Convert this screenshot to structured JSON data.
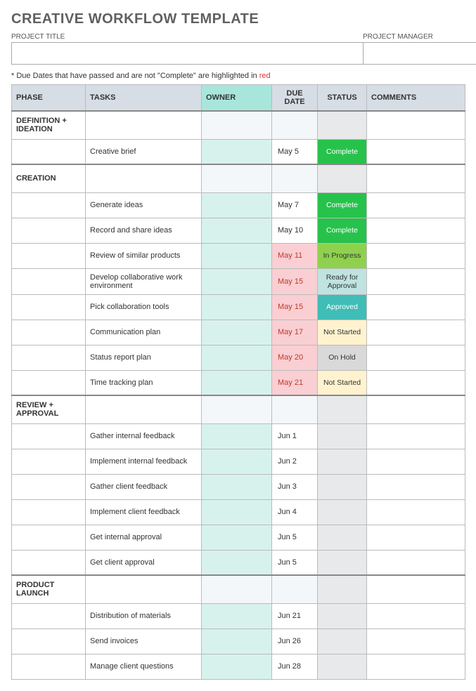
{
  "title": "CREATIVE WORKFLOW TEMPLATE",
  "meta": {
    "project_title_label": "PROJECT TITLE",
    "project_manager_label": "PROJECT MANAGER",
    "project_title_value": "",
    "project_manager_value": ""
  },
  "note": {
    "prefix": "* Due Dates that have passed and are not \"Complete\" are highlighted in ",
    "red_word": "red"
  },
  "columns": {
    "phase": "PHASE",
    "tasks": "TASKS",
    "owner": "OWNER",
    "due": "DUE DATE",
    "status": "STATUS",
    "comments": "COMMENTS"
  },
  "status_styles": {
    "Complete": {
      "bg": "#27c24c",
      "fg": "#ffffff"
    },
    "In Progress": {
      "bg": "#8fd14f",
      "fg": "#333333"
    },
    "Ready for Approval": {
      "bg": "#bfe3e0",
      "fg": "#333333"
    },
    "Approved": {
      "bg": "#3fbdb6",
      "fg": "#ffffff"
    },
    "Not Started": {
      "bg": "#fff3cf",
      "fg": "#333333"
    },
    "On Hold": {
      "bg": "#d9d9d9",
      "fg": "#333333"
    },
    "": {
      "bg": "#e7e9eb",
      "fg": "#333333"
    }
  },
  "overdue_style": {
    "bg": "#f9cfd3",
    "fg": "#c0392b"
  },
  "sections": [
    {
      "phase": "DEFINITION + IDEATION",
      "tasks": [
        {
          "task": "Creative brief",
          "owner": "",
          "due": "May 5",
          "overdue": false,
          "status": "Complete",
          "comments": ""
        }
      ]
    },
    {
      "phase": "CREATION",
      "tasks": [
        {
          "task": "Generate ideas",
          "owner": "",
          "due": "May 7",
          "overdue": false,
          "status": "Complete",
          "comments": ""
        },
        {
          "task": "Record and share ideas",
          "owner": "",
          "due": "May 10",
          "overdue": false,
          "status": "Complete",
          "comments": ""
        },
        {
          "task": "Review of similar products",
          "owner": "",
          "due": "May 11",
          "overdue": true,
          "status": "In Progress",
          "comments": ""
        },
        {
          "task": "Develop collaborative work environment",
          "owner": "",
          "due": "May 15",
          "overdue": true,
          "status": "Ready for Approval",
          "comments": ""
        },
        {
          "task": "Pick collaboration tools",
          "owner": "",
          "due": "May 15",
          "overdue": true,
          "status": "Approved",
          "comments": ""
        },
        {
          "task": "Communication plan",
          "owner": "",
          "due": "May 17",
          "overdue": true,
          "status": "Not Started",
          "comments": ""
        },
        {
          "task": "Status report plan",
          "owner": "",
          "due": "May 20",
          "overdue": true,
          "status": "On Hold",
          "comments": ""
        },
        {
          "task": "Time tracking plan",
          "owner": "",
          "due": "May 21",
          "overdue": true,
          "status": "Not Started",
          "comments": ""
        }
      ]
    },
    {
      "phase": "REVIEW + APPROVAL",
      "tasks": [
        {
          "task": "Gather internal feedback",
          "owner": "",
          "due": "Jun 1",
          "overdue": false,
          "status": "",
          "comments": ""
        },
        {
          "task": "Implement internal feedback",
          "owner": "",
          "due": "Jun 2",
          "overdue": false,
          "status": "",
          "comments": ""
        },
        {
          "task": "Gather client feedback",
          "owner": "",
          "due": "Jun 3",
          "overdue": false,
          "status": "",
          "comments": ""
        },
        {
          "task": "Implement client feedback",
          "owner": "",
          "due": "Jun 4",
          "overdue": false,
          "status": "",
          "comments": ""
        },
        {
          "task": "Get internal approval",
          "owner": "",
          "due": "Jun 5",
          "overdue": false,
          "status": "",
          "comments": ""
        },
        {
          "task": "Get client approval",
          "owner": "",
          "due": "Jun 5",
          "overdue": false,
          "status": "",
          "comments": ""
        }
      ]
    },
    {
      "phase": "PRODUCT LAUNCH",
      "tasks": [
        {
          "task": "Distribution of materials",
          "owner": "",
          "due": "Jun 21",
          "overdue": false,
          "status": "",
          "comments": ""
        },
        {
          "task": "Send invoices",
          "owner": "",
          "due": "Jun 26",
          "overdue": false,
          "status": "",
          "comments": ""
        },
        {
          "task": "Manage client questions",
          "owner": "",
          "due": "Jun 28",
          "overdue": false,
          "status": "",
          "comments": ""
        }
      ]
    }
  ]
}
